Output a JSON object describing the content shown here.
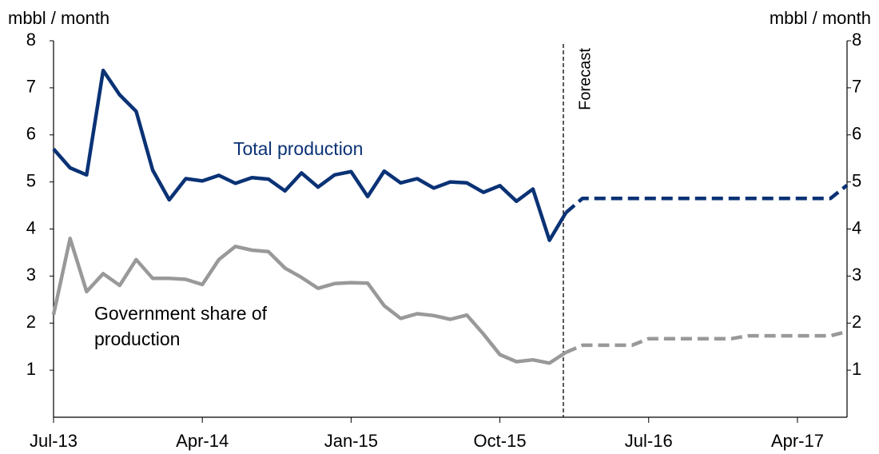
{
  "chart_data": {
    "type": "line",
    "y_label": "mbbl / month",
    "y2_label": "mbbl / month",
    "annotation": "Forecast",
    "categories": [
      "Jul-13",
      null,
      null,
      null,
      null,
      null,
      null,
      null,
      null,
      "Apr-14",
      null,
      null,
      null,
      null,
      null,
      null,
      null,
      null,
      "Jan-15",
      null,
      null,
      null,
      null,
      null,
      null,
      null,
      null,
      "Oct-15",
      null,
      null,
      null,
      null,
      null,
      null,
      null,
      null,
      "Jul-16",
      null,
      null,
      null,
      null,
      null,
      null,
      null,
      null,
      "Apr-17",
      null,
      null,
      null
    ],
    "series": [
      {
        "name": "Total production",
        "color": "#0a3275",
        "dashed": false,
        "values": [
          5.7,
          5.3,
          5.15,
          7.37,
          6.85,
          6.5,
          5.25,
          4.62,
          5.07,
          5.02,
          5.14,
          4.97,
          5.09,
          5.06,
          4.81,
          5.19,
          4.89,
          5.15,
          5.22,
          4.69,
          5.23,
          4.98,
          5.07,
          4.87,
          5.0,
          4.98,
          4.78,
          4.92,
          4.59,
          4.85,
          3.76,
          4.35,
          null,
          null,
          null,
          null,
          null,
          null,
          null,
          null,
          null,
          null,
          null,
          null,
          null,
          null,
          null,
          null,
          null
        ]
      },
      {
        "color": "#0a3275",
        "dashed": true,
        "values": [
          null,
          null,
          null,
          null,
          null,
          null,
          null,
          null,
          null,
          null,
          null,
          null,
          null,
          null,
          null,
          null,
          null,
          null,
          null,
          null,
          null,
          null,
          null,
          null,
          null,
          null,
          null,
          null,
          null,
          null,
          null,
          4.35,
          4.65,
          4.65,
          4.65,
          4.65,
          4.65,
          4.65,
          4.65,
          4.65,
          4.65,
          4.65,
          4.65,
          4.65,
          4.65,
          4.65,
          4.65,
          4.65,
          4.93
        ]
      },
      {
        "name": "Government share of production",
        "color": "#999999",
        "dashed": false,
        "values": [
          2.18,
          3.8,
          2.67,
          3.05,
          2.8,
          3.35,
          2.95,
          2.95,
          2.93,
          2.82,
          3.35,
          3.63,
          3.55,
          3.52,
          3.17,
          2.97,
          2.74,
          2.84,
          2.86,
          2.85,
          2.37,
          2.1,
          2.2,
          2.16,
          2.08,
          2.17,
          1.77,
          1.33,
          1.18,
          1.22,
          1.15,
          1.38,
          null,
          null,
          null,
          null,
          null,
          null,
          null,
          null,
          null,
          null,
          null,
          null,
          null,
          null,
          null,
          null,
          null
        ]
      },
      {
        "color": "#999999",
        "dashed": true,
        "values": [
          null,
          null,
          null,
          null,
          null,
          null,
          null,
          null,
          null,
          null,
          null,
          null,
          null,
          null,
          null,
          null,
          null,
          null,
          null,
          null,
          null,
          null,
          null,
          null,
          null,
          null,
          null,
          null,
          null,
          null,
          null,
          1.38,
          1.53,
          1.53,
          1.53,
          1.53,
          1.67,
          1.67,
          1.67,
          1.67,
          1.67,
          1.67,
          1.73,
          1.73,
          1.73,
          1.73,
          1.73,
          1.73,
          1.82
        ]
      }
    ],
    "ylim": [
      0,
      8
    ],
    "yticks": [
      1,
      2,
      3,
      4,
      5,
      6,
      7,
      8
    ],
    "y2lim": [
      0,
      8
    ],
    "y2ticks": [
      1,
      2,
      3,
      4,
      5,
      6,
      7,
      8
    ],
    "grid": false
  }
}
